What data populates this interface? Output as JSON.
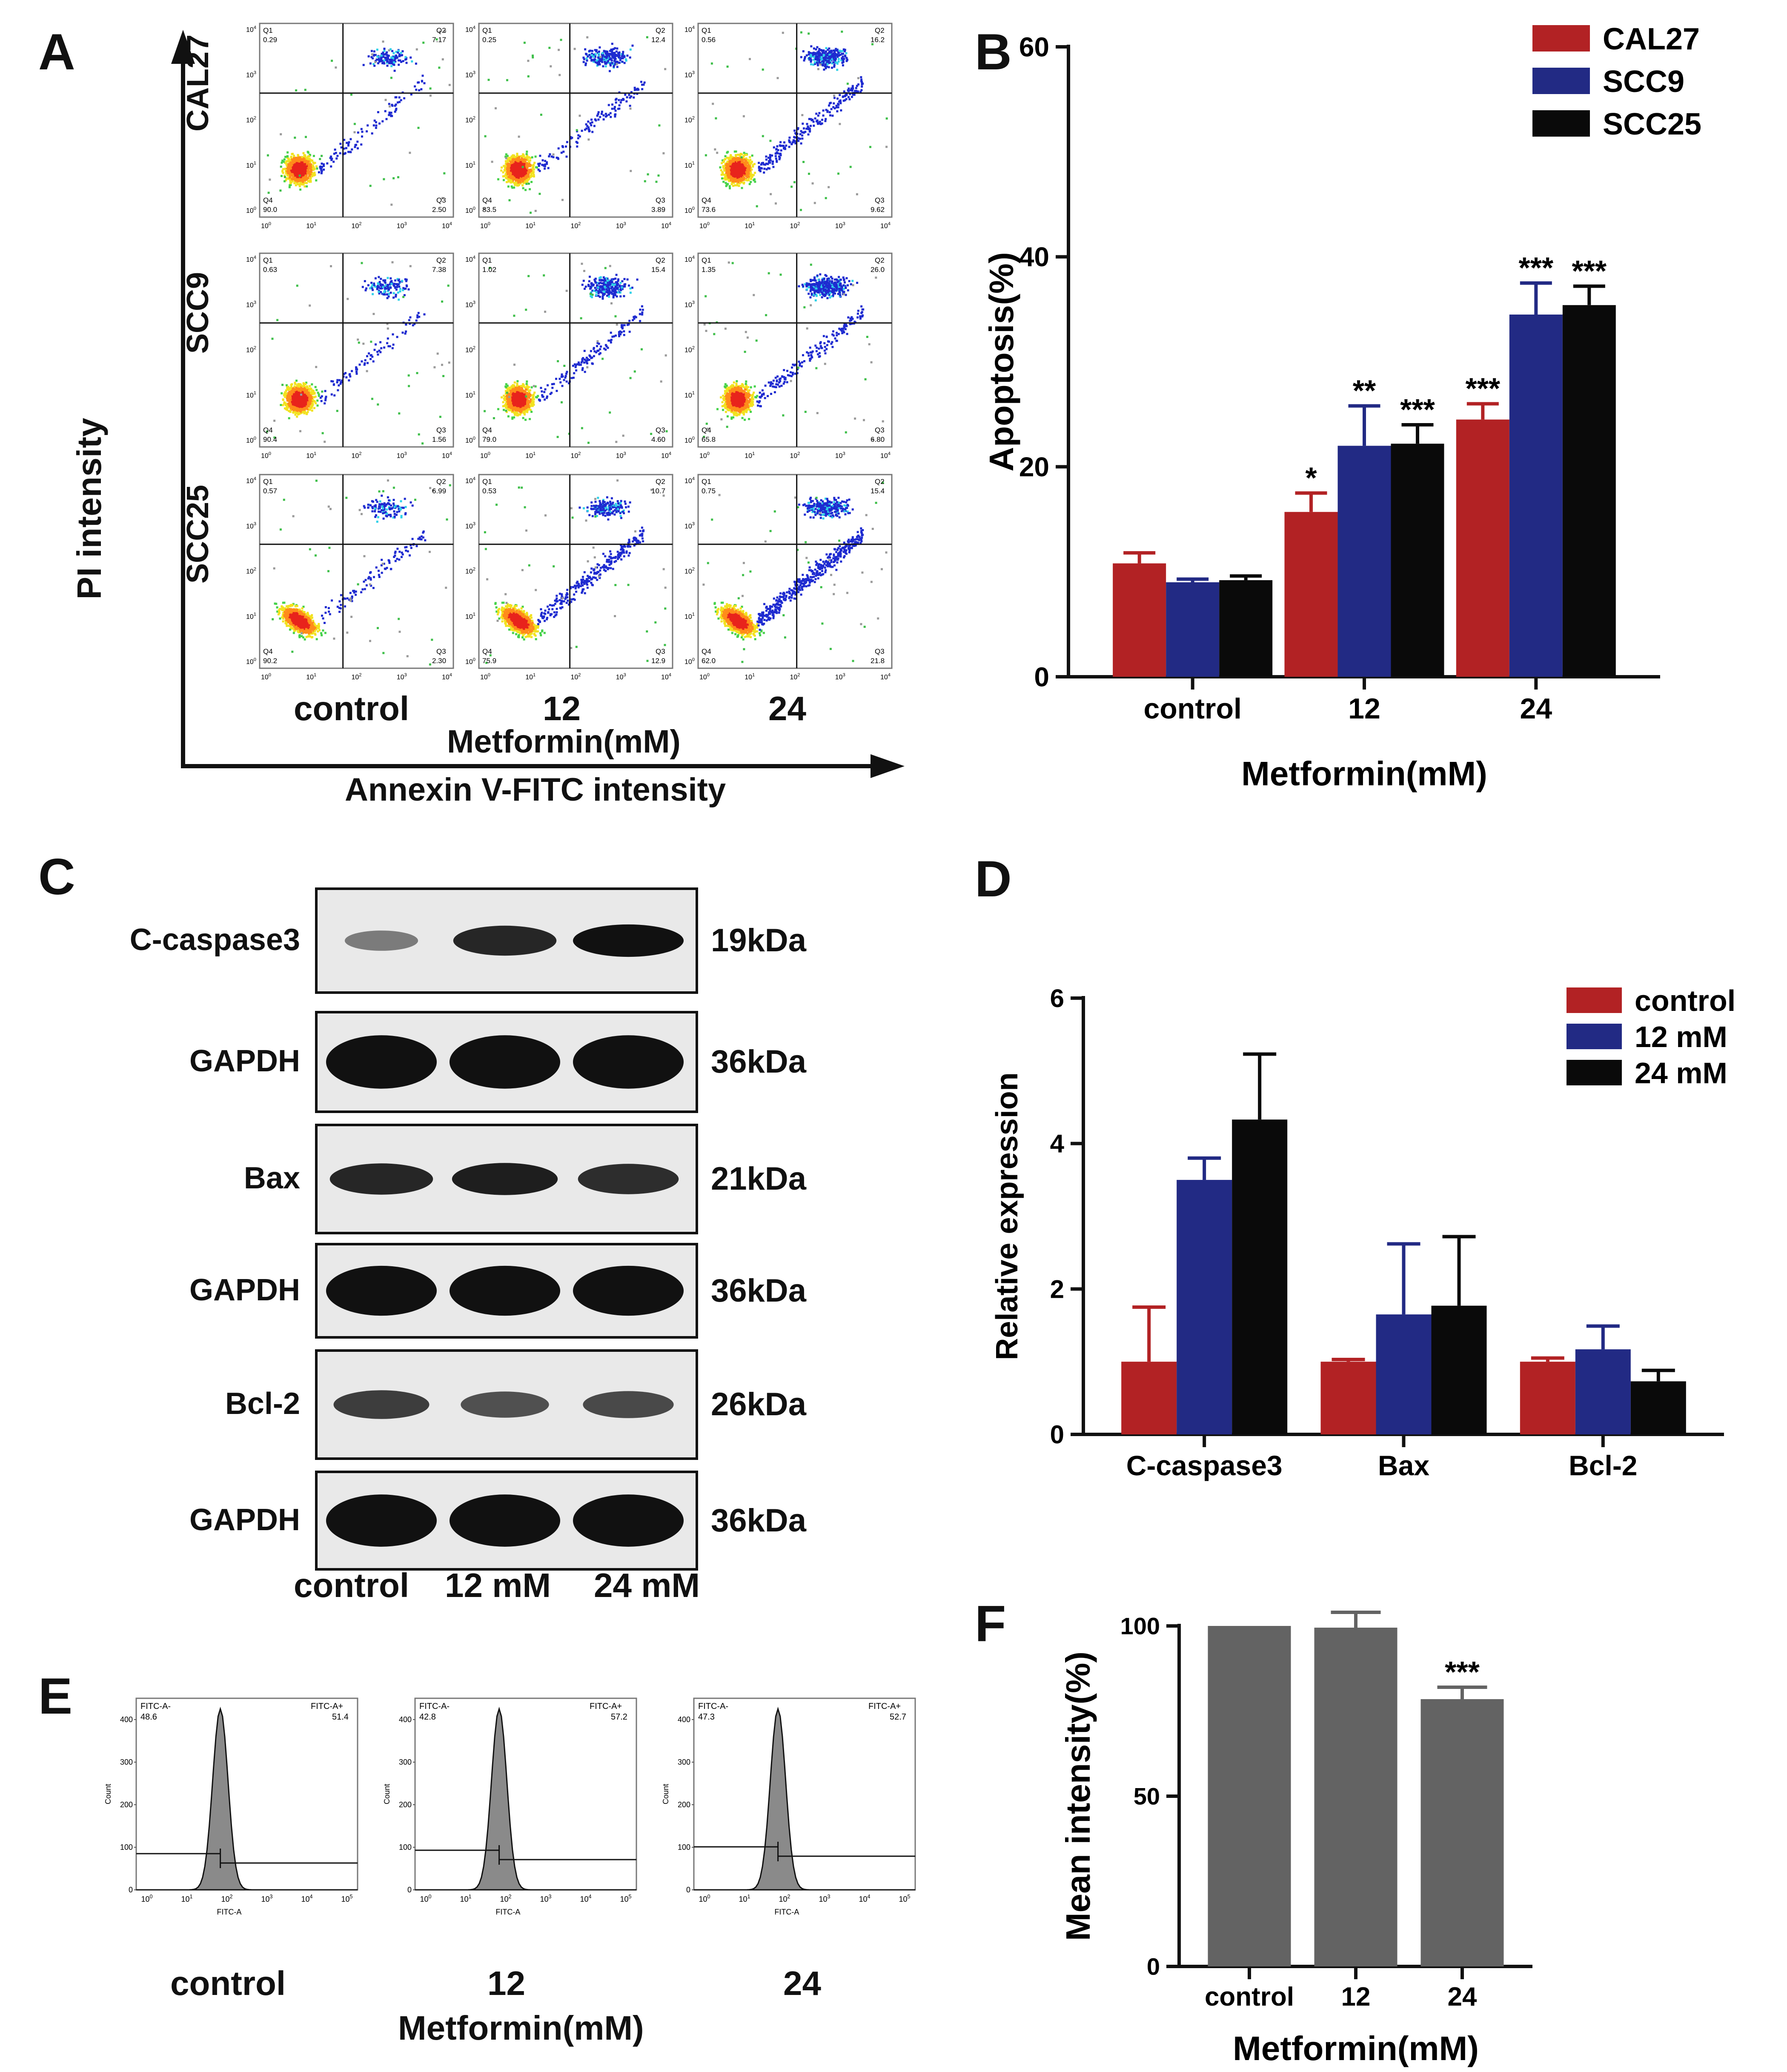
{
  "panels": {
    "A": {
      "letter": "A",
      "rows": [
        "CAL27",
        "SCC9",
        "SCC25"
      ],
      "cols": [
        "control",
        "12",
        "24"
      ],
      "y_axis_label": "PI intensity",
      "x_axis_label": "Annexin V-FITC intensity",
      "treatment_label": "Metformin(mM)",
      "quadrant_names": [
        "Q1",
        "Q2",
        "Q3",
        "Q4"
      ],
      "tick_labels": [
        "10^0",
        "10^1",
        "10^2",
        "10^3",
        "10^4"
      ],
      "plots": [
        {
          "cell": "CAL27",
          "dose": "control",
          "Q1": "0.29",
          "Q2": "7.17",
          "Q3": "2.50",
          "Q4": "90.0"
        },
        {
          "cell": "CAL27",
          "dose": "12",
          "Q1": "0.25",
          "Q2": "12.4",
          "Q3": "3.89",
          "Q4": "83.5"
        },
        {
          "cell": "CAL27",
          "dose": "24",
          "Q1": "0.56",
          "Q2": "16.2",
          "Q3": "9.62",
          "Q4": "73.6"
        },
        {
          "cell": "SCC9",
          "dose": "control",
          "Q1": "0.63",
          "Q2": "7.38",
          "Q3": "1.56",
          "Q4": "90.4"
        },
        {
          "cell": "SCC9",
          "dose": "12",
          "Q1": "1.02",
          "Q2": "15.4",
          "Q3": "4.60",
          "Q4": "79.0"
        },
        {
          "cell": "SCC9",
          "dose": "24",
          "Q1": "1.35",
          "Q2": "26.0",
          "Q3": "6.80",
          "Q4": "65.8"
        },
        {
          "cell": "SCC25",
          "dose": "control",
          "Q1": "0.57",
          "Q2": "6.99",
          "Q3": "2.30",
          "Q4": "90.2"
        },
        {
          "cell": "SCC25",
          "dose": "12",
          "Q1": "0.53",
          "Q2": "10.7",
          "Q3": "12.9",
          "Q4": "75.9"
        },
        {
          "cell": "SCC25",
          "dose": "24",
          "Q1": "0.75",
          "Q2": "15.4",
          "Q3": "21.8",
          "Q4": "62.0"
        }
      ]
    },
    "B": {
      "letter": "B"
    },
    "C": {
      "letter": "C",
      "blots": [
        {
          "protein": "C-caspase3",
          "size": "19kDa"
        },
        {
          "protein": "GAPDH",
          "size": "36kDa"
        },
        {
          "protein": "Bax",
          "size": "21kDa"
        },
        {
          "protein": "GAPDH",
          "size": "36kDa"
        },
        {
          "protein": "Bcl-2",
          "size": "26kDa"
        },
        {
          "protein": "GAPDH",
          "size": "36kDa"
        }
      ],
      "lanes": [
        "control",
        "12 mM",
        "24 mM"
      ],
      "band_intensity": [
        [
          0.25,
          0.85,
          1.0
        ],
        [
          1.0,
          1.0,
          1.0
        ],
        [
          0.85,
          0.9,
          0.8
        ],
        [
          1.0,
          1.0,
          1.0
        ],
        [
          0.7,
          0.55,
          0.6
        ],
        [
          1.0,
          1.0,
          1.0
        ]
      ]
    },
    "D": {
      "letter": "D"
    },
    "E": {
      "letter": "E",
      "x_axis": "FITC-A",
      "y_axis": "Count",
      "y_ticks": [
        "0",
        "100",
        "200",
        "300",
        "400"
      ],
      "x_ticks": [
        "10^0",
        "10^1",
        "10^2",
        "10^3",
        "10^4",
        "10^5"
      ],
      "gate_neg": "FITC-A-",
      "gate_pos": "FITC-A+",
      "histograms": [
        {
          "label": "control",
          "neg": "48.6",
          "pos": "51.4"
        },
        {
          "label": "12",
          "neg": "42.8",
          "pos": "57.2"
        },
        {
          "label": "24",
          "neg": "47.3",
          "pos": "52.7"
        }
      ],
      "treatment_label": "Metformin(mM)"
    },
    "F": {
      "letter": "F"
    }
  },
  "colors": {
    "red": "#b22224",
    "blue": "#222a84",
    "black": "#0a0a0a",
    "gray": "#636363"
  },
  "chart_data": [
    {
      "id": "B",
      "type": "bar",
      "categories": [
        "control",
        "12",
        "24"
      ],
      "series": [
        {
          "name": "CAL27",
          "color": "#b22224",
          "values": [
            10.8,
            15.7,
            24.5
          ],
          "errors": [
            1.0,
            1.8,
            1.5
          ]
        },
        {
          "name": "SCC9",
          "color": "#222a84",
          "values": [
            9.0,
            22.0,
            34.5
          ],
          "errors": [
            0.3,
            3.8,
            3.0
          ]
        },
        {
          "name": "SCC25",
          "color": "#0a0a0a",
          "values": [
            9.2,
            22.2,
            35.4
          ],
          "errors": [
            0.4,
            1.8,
            1.8
          ]
        }
      ],
      "significance": [
        [
          "",
          "",
          ""
        ],
        [
          "*",
          "**",
          "***"
        ],
        [
          "***",
          "***",
          "***"
        ]
      ],
      "ylabel": "Apoptosis(%)",
      "xlabel": "Metformin(mM)",
      "ylim": [
        0,
        60
      ],
      "yticks": [
        0,
        20,
        40,
        60
      ],
      "legend": "top-right"
    },
    {
      "id": "D",
      "type": "bar",
      "categories": [
        "C-caspase3",
        "Bax",
        "Bcl-2"
      ],
      "series": [
        {
          "name": "control",
          "color": "#b22224",
          "values": [
            1.0,
            1.0,
            1.0
          ],
          "errors": [
            0.75,
            0.03,
            0.05
          ]
        },
        {
          "name": "12 mM",
          "color": "#222a84",
          "values": [
            3.5,
            1.65,
            1.17
          ],
          "errors": [
            0.3,
            0.97,
            0.32
          ]
        },
        {
          "name": "24 mM",
          "color": "#0a0a0a",
          "values": [
            4.33,
            1.77,
            0.73
          ],
          "errors": [
            0.9,
            0.95,
            0.15
          ]
        }
      ],
      "ylabel": "Relative expression",
      "xlabel": "",
      "ylim": [
        0,
        6
      ],
      "yticks": [
        0,
        2,
        4,
        6
      ],
      "legend": "top-right"
    },
    {
      "id": "F",
      "type": "bar",
      "categories": [
        "control",
        "12",
        "24"
      ],
      "series": [
        {
          "name": "Mean intensity",
          "color": "#636363",
          "values": [
            100,
            99.5,
            78.5
          ],
          "errors": [
            0,
            4.5,
            3.5
          ]
        }
      ],
      "significance": [
        [
          "",
          "",
          "***"
        ]
      ],
      "ylabel": "Mean intensity(%)",
      "xlabel": "Metformin(mM)",
      "ylim": [
        0,
        100
      ],
      "yticks": [
        0,
        50,
        100
      ]
    }
  ]
}
